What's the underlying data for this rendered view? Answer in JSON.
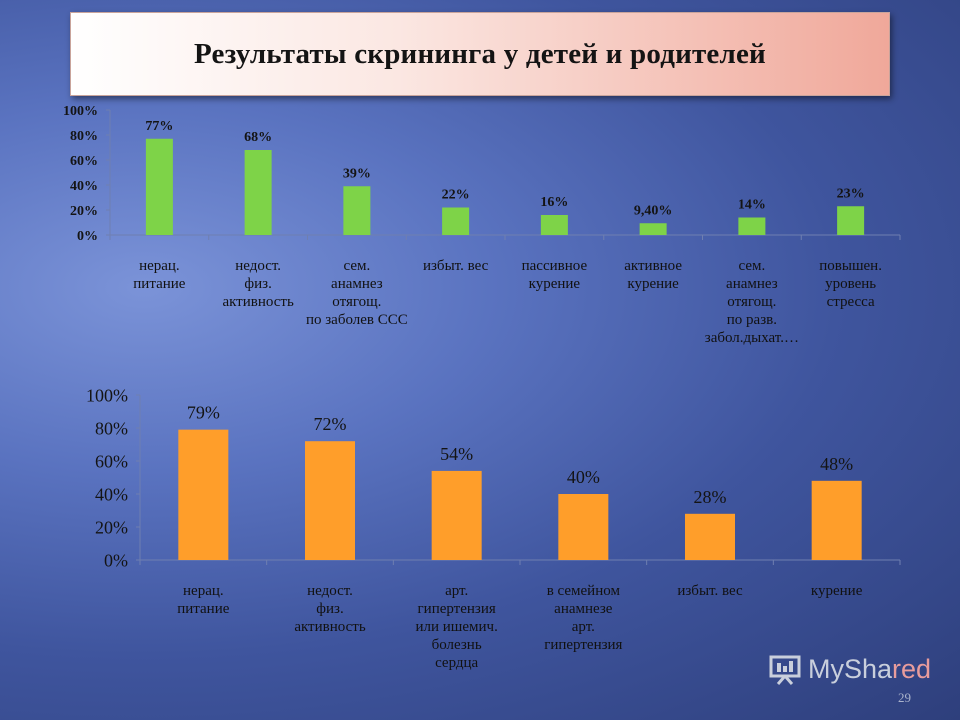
{
  "title": "Результаты скрининга у детей и родителей",
  "chart_data": [
    {
      "type": "bar",
      "title": "",
      "categories": [
        "нерац.\nпитание",
        "недост.\nфиз.\nактивность",
        "сем.\nанамнез\nотягощ.\nпо заболев ССС",
        "избыт. вес",
        "пассивное\nкурение",
        "активное\nкурение",
        "сем.\nанамнез\nотягощ.\nпо разв.\nзабол.дыхат.…",
        "повышен.\nуровень\nстресса"
      ],
      "values": [
        77,
        68,
        39,
        22,
        16,
        9.4,
        14,
        23
      ],
      "data_labels": [
        "77%",
        "68%",
        "39%",
        "22%",
        "16%",
        "9,40%",
        "14%",
        "23%"
      ],
      "ylim": [
        0,
        100
      ],
      "yticks": [
        "0%",
        "20%",
        "40%",
        "60%",
        "80%",
        "100%"
      ],
      "grid": false,
      "color": "#7ed348"
    },
    {
      "type": "bar",
      "title": "",
      "categories": [
        "нерац.\nпитание",
        "недост.\nфиз.\nактивность",
        "арт.\nгипертензия\nили ишемич.\nболезнь\nсердца",
        "в семейном\nанамнезе\nарт.\nгипертензия",
        "избыт. вес",
        "курение"
      ],
      "values": [
        79,
        72,
        54,
        40,
        28,
        48
      ],
      "data_labels": [
        "79%",
        "72%",
        "54%",
        "40%",
        "28%",
        "48%"
      ],
      "ylim": [
        0,
        100
      ],
      "yticks": [
        "0%",
        "20%",
        "40%",
        "60%",
        "80%",
        "100%"
      ],
      "grid": false,
      "color": "#ff9e2a"
    }
  ],
  "watermark": "MySha",
  "watermark_tail": "red",
  "page_number": "29"
}
